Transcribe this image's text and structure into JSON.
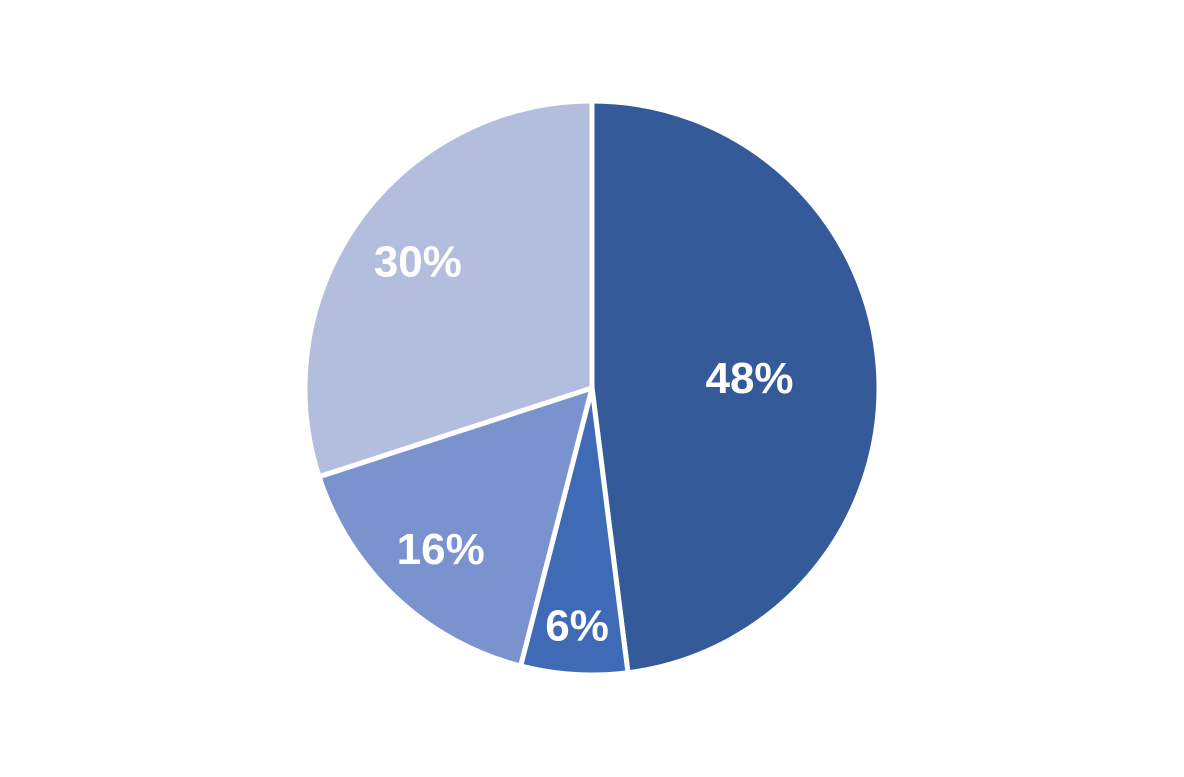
{
  "chart_data": {
    "type": "pie",
    "values": [
      48,
      6,
      16,
      30
    ],
    "labels": [
      "48%",
      "6%",
      "16%",
      "30%"
    ],
    "colors": [
      "#345A99",
      "#3F6AB5",
      "#7A92CE",
      "#B3BEDE"
    ],
    "start": "top",
    "direction": "clockwise",
    "legend": "none"
  }
}
